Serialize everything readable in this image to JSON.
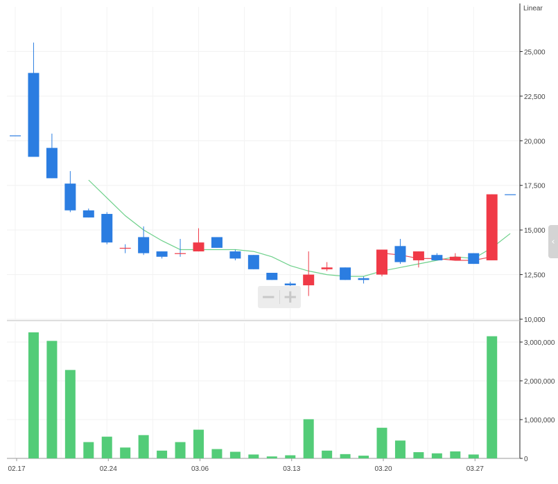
{
  "chart_data": [
    {
      "type": "candlestick",
      "scale_label": "Linear",
      "ylim": [
        10000,
        27500
      ],
      "y_ticks": [
        "25,000",
        "22,500",
        "20,000",
        "17,500",
        "15,000",
        "12,500",
        "10,000"
      ],
      "y_tick_values": [
        25000,
        22500,
        20000,
        17500,
        15000,
        12500,
        10000
      ],
      "x_ticks": [
        "02.17",
        "02.24",
        "03.06",
        "03.13",
        "03.20",
        "03.27"
      ],
      "x_tick_index": [
        0,
        5,
        10,
        15,
        20,
        25
      ],
      "colors": {
        "up": "#f03a47",
        "down": "#2b7de1",
        "ma_short": "#e94b57",
        "ma_long": "#6dd08a"
      },
      "candles": [
        {
          "o": 20300,
          "h": 20300,
          "l": 20300,
          "c": 20300
        },
        {
          "o": 23800,
          "h": 25500,
          "l": 19100,
          "c": 19100
        },
        {
          "o": 19600,
          "h": 20400,
          "l": 17900,
          "c": 17900
        },
        {
          "o": 17600,
          "h": 18300,
          "l": 16000,
          "c": 16100
        },
        {
          "o": 16100,
          "h": 16200,
          "l": 15700,
          "c": 15700
        },
        {
          "o": 15900,
          "h": 16000,
          "l": 14200,
          "c": 14300
        },
        {
          "o": 14000,
          "h": 14200,
          "l": 13700,
          "c": 14000
        },
        {
          "o": 14600,
          "h": 15200,
          "l": 13600,
          "c": 13700
        },
        {
          "o": 13800,
          "h": 13800,
          "l": 13400,
          "c": 13500
        },
        {
          "o": 13700,
          "h": 14500,
          "l": 13500,
          "c": 13700
        },
        {
          "o": 13800,
          "h": 15100,
          "l": 13800,
          "c": 14300
        },
        {
          "o": 14600,
          "h": 14600,
          "l": 14000,
          "c": 14000
        },
        {
          "o": 13800,
          "h": 13900,
          "l": 13300,
          "c": 13400
        },
        {
          "o": 13600,
          "h": 13600,
          "l": 12800,
          "c": 12800
        },
        {
          "o": 12600,
          "h": 12600,
          "l": 12200,
          "c": 12200
        },
        {
          "o": 12000,
          "h": 12100,
          "l": 11800,
          "c": 11900
        },
        {
          "o": 11900,
          "h": 13800,
          "l": 11300,
          "c": 12500
        },
        {
          "o": 12800,
          "h": 13200,
          "l": 12700,
          "c": 12900
        },
        {
          "o": 12900,
          "h": 12900,
          "l": 12200,
          "c": 12200
        },
        {
          "o": 12300,
          "h": 12400,
          "l": 12000,
          "c": 12200
        },
        {
          "o": 12500,
          "h": 13900,
          "l": 12400,
          "c": 13900
        },
        {
          "o": 14100,
          "h": 14500,
          "l": 13100,
          "c": 13200
        },
        {
          "o": 13300,
          "h": 13800,
          "l": 12900,
          "c": 13800
        },
        {
          "o": 13600,
          "h": 13700,
          "l": 13300,
          "c": 13300
        },
        {
          "o": 13300,
          "h": 13700,
          "l": 13300,
          "c": 13500
        },
        {
          "o": 13700,
          "h": 13700,
          "l": 13100,
          "c": 13100
        },
        {
          "o": 13300,
          "h": 17000,
          "l": 13300,
          "c": 17000
        },
        {
          "o": 17000,
          "h": 17000,
          "l": 17000,
          "c": 17000
        }
      ],
      "ma_short": [
        null,
        null,
        null,
        null,
        null,
        null,
        null,
        null,
        null,
        null,
        null,
        null,
        null,
        null,
        null,
        null,
        null,
        null,
        null,
        null,
        13700,
        13600,
        13400,
        13400,
        13300,
        13300,
        13500,
        null
      ],
      "ma_long": [
        null,
        null,
        null,
        null,
        17800,
        16800,
        15800,
        15000,
        14400,
        13900,
        13900,
        13900,
        13900,
        13800,
        13500,
        13000,
        12700,
        12500,
        12400,
        12400,
        12700,
        12900,
        13100,
        13300,
        13500,
        13400,
        14000,
        14800
      ]
    },
    {
      "type": "bar",
      "ylim": [
        0,
        3500000
      ],
      "y_ticks": [
        "3,000,000",
        "2,000,000",
        "1,000,000",
        "0"
      ],
      "y_tick_values": [
        3000000,
        2000000,
        1000000,
        0
      ],
      "color": "#53cc78",
      "values": [
        0,
        3250000,
        3030000,
        2280000,
        420000,
        560000,
        280000,
        600000,
        200000,
        420000,
        740000,
        240000,
        170000,
        100000,
        50000,
        80000,
        1010000,
        200000,
        110000,
        70000,
        790000,
        460000,
        160000,
        130000,
        180000,
        100000,
        3150000,
        0
      ]
    }
  ]
}
